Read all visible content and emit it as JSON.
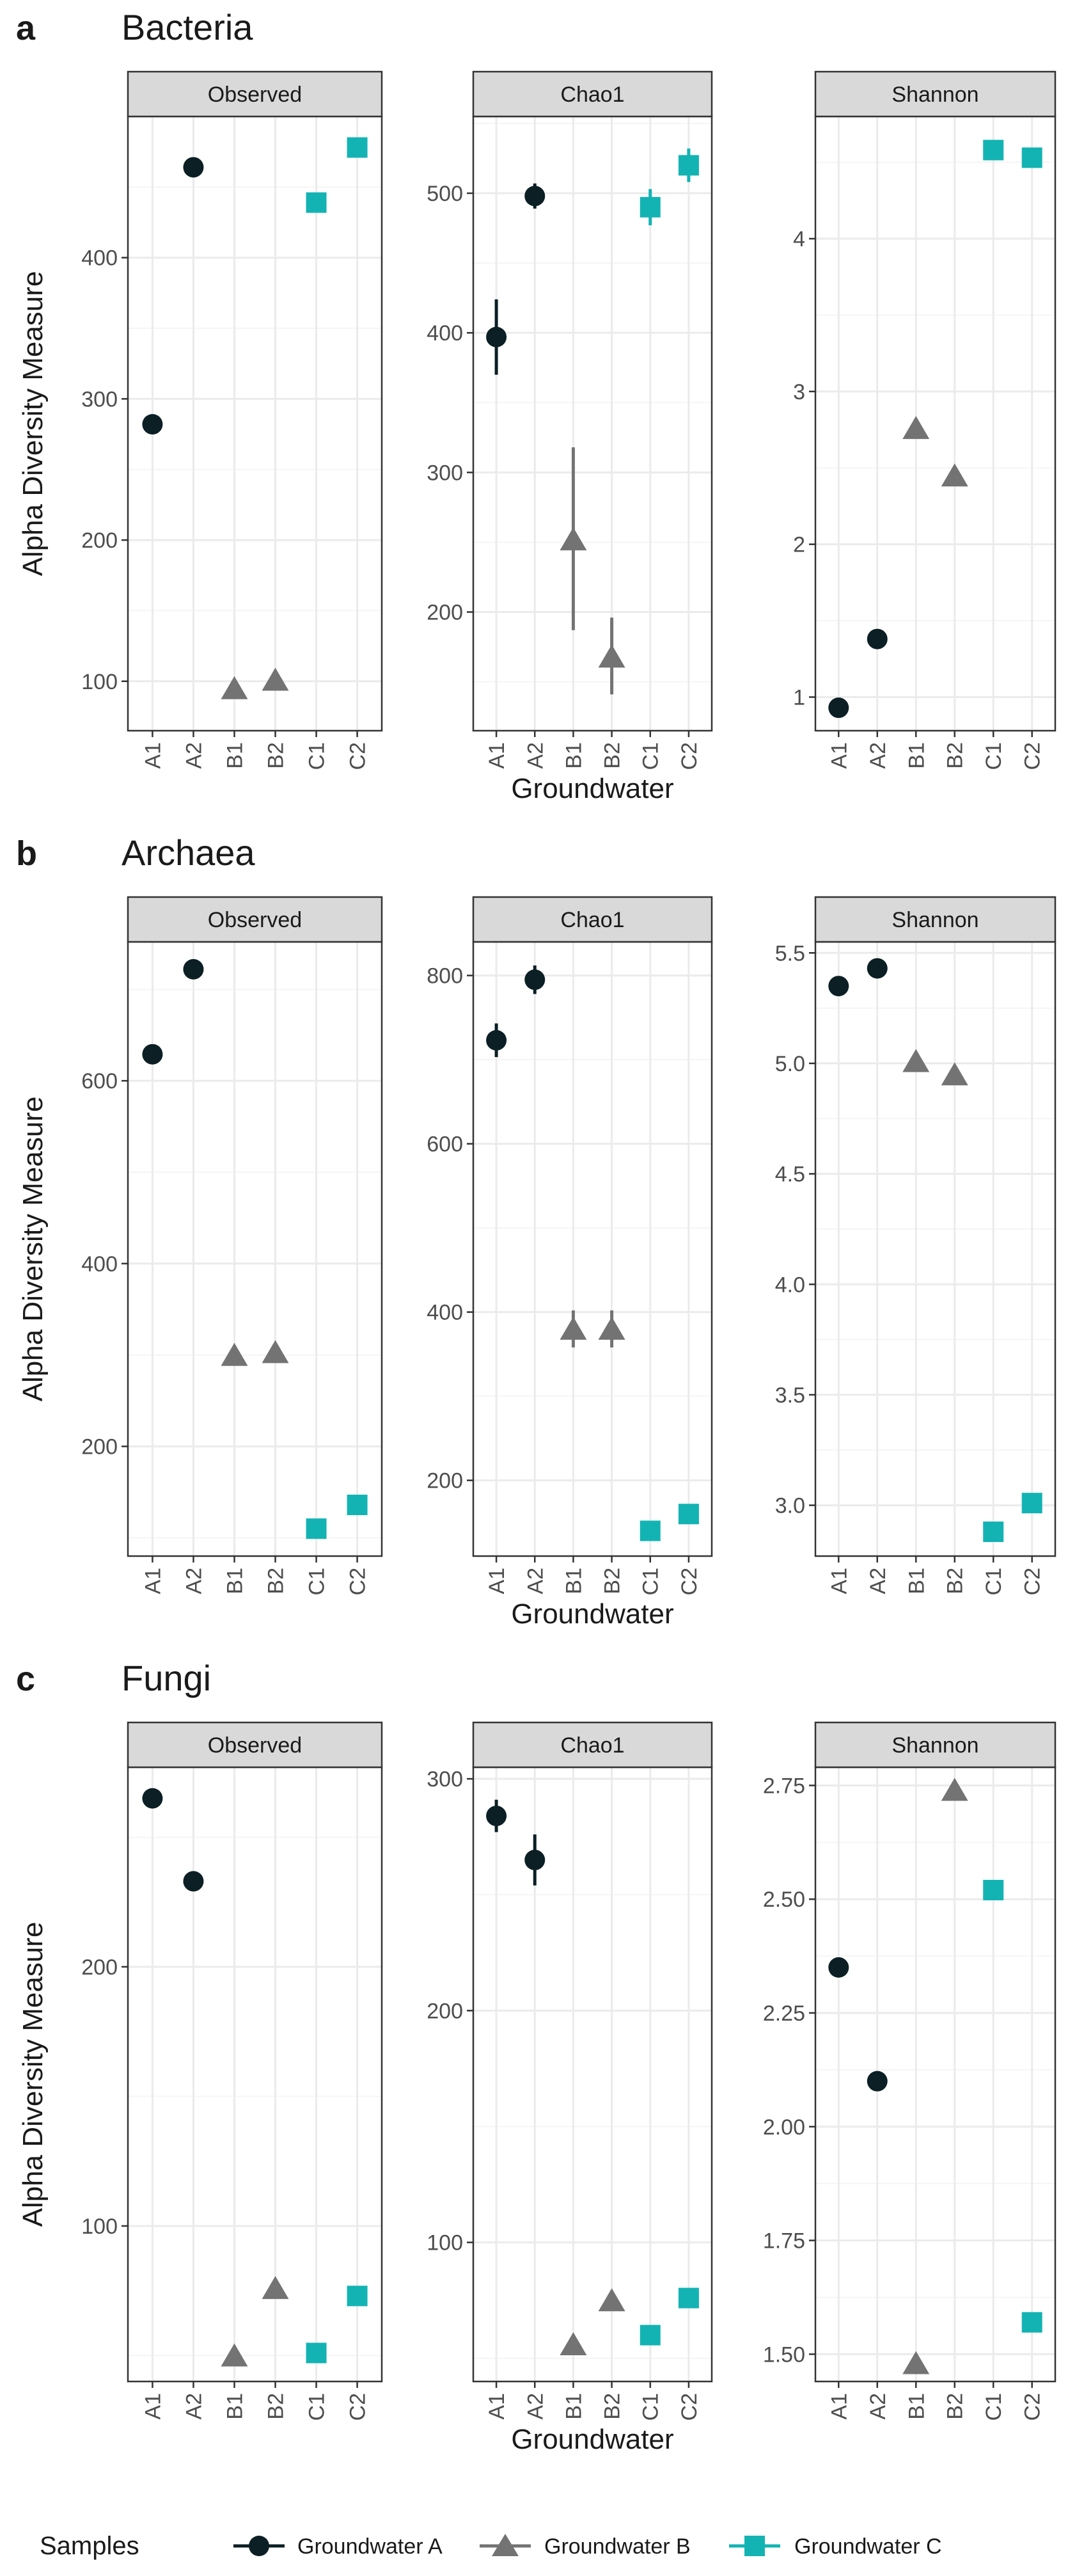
{
  "figure": {
    "xlabel": "Groundwater",
    "ylabel": "Alpha Diversity Measure"
  },
  "legend": {
    "title": "Samples",
    "entries": [
      {
        "label": "Groundwater A",
        "shape": "circle",
        "color": "#0b1f24"
      },
      {
        "label": "Groundwater B",
        "shape": "triangle",
        "color": "#737373"
      },
      {
        "label": "Groundwater C",
        "shape": "square",
        "color": "#14b3b3"
      }
    ]
  },
  "colors": {
    "strip_bg": "#d9d9d9",
    "grid_major": "#ebebeb",
    "grid_minor": "#f5f5f5",
    "border": "#333333",
    "text": "#1a1a1a",
    "tick_text": "#4d4d4d"
  },
  "chart_data": [
    {
      "letter": "a",
      "title": "Bacteria",
      "type": "scatter",
      "categories": [
        "A1",
        "A2",
        "B1",
        "B2",
        "C1",
        "C2"
      ],
      "groups": [
        "A",
        "A",
        "B",
        "B",
        "C",
        "C"
      ],
      "panels": [
        {
          "strip": "Observed",
          "ylim": [
            65,
            500
          ],
          "yticks": [
            100,
            200,
            300,
            400
          ],
          "values": [
            282,
            464,
            95,
            101,
            439,
            478
          ]
        },
        {
          "strip": "Chao1",
          "ylim": [
            115,
            555
          ],
          "yticks": [
            200,
            300,
            400,
            500
          ],
          "values": [
            397,
            498,
            252,
            168,
            490,
            520
          ],
          "errors": [
            [
              370,
              424
            ],
            [
              489,
              507
            ],
            [
              187,
              318
            ],
            [
              141,
              196
            ],
            [
              477,
              503
            ],
            [
              508,
              532
            ]
          ]
        },
        {
          "strip": "Shannon",
          "ylim": [
            0.78,
            4.8
          ],
          "yticks": [
            1,
            2,
            3,
            4
          ],
          "tick_labels": [
            "1",
            "2",
            "3",
            "4"
          ],
          "values": [
            0.93,
            1.38,
            2.76,
            2.45,
            4.58,
            4.53
          ]
        }
      ]
    },
    {
      "letter": "b",
      "title": "Archaea",
      "type": "scatter",
      "categories": [
        "A1",
        "A2",
        "B1",
        "B2",
        "C1",
        "C2"
      ],
      "groups": [
        "A",
        "A",
        "B",
        "B",
        "C",
        "C"
      ],
      "panels": [
        {
          "strip": "Observed",
          "ylim": [
            80,
            752
          ],
          "yticks": [
            200,
            400,
            600
          ],
          "values": [
            629,
            722,
            300,
            303,
            110,
            136
          ]
        },
        {
          "strip": "Chao1",
          "ylim": [
            110,
            840
          ],
          "yticks": [
            200,
            400,
            600,
            800
          ],
          "values": [
            723,
            795,
            380,
            380,
            140,
            160
          ],
          "errors": [
            [
              703,
              743
            ],
            [
              778,
              812
            ],
            [
              358,
              402
            ],
            [
              358,
              402
            ],
            [
              132,
              148
            ],
            [
              153,
              167
            ]
          ]
        },
        {
          "strip": "Shannon",
          "ylim": [
            2.77,
            5.55
          ],
          "yticks": [
            3.0,
            3.5,
            4.0,
            4.5,
            5.0,
            5.5
          ],
          "tick_labels": [
            "3.0",
            "3.5",
            "4.0",
            "4.5",
            "5.0",
            "5.5"
          ],
          "values": [
            5.35,
            5.43,
            5.01,
            4.95,
            2.88,
            3.01
          ]
        }
      ]
    },
    {
      "letter": "c",
      "title": "Fungi",
      "type": "scatter",
      "categories": [
        "A1",
        "A2",
        "B1",
        "B2",
        "C1",
        "C2"
      ],
      "groups": [
        "A",
        "A",
        "B",
        "B",
        "C",
        "C"
      ],
      "panels": [
        {
          "strip": "Observed",
          "ylim": [
            40,
            277
          ],
          "yticks": [
            100,
            200
          ],
          "values": [
            265,
            233,
            50,
            76,
            51,
            73
          ]
        },
        {
          "strip": "Chao1",
          "ylim": [
            40,
            305
          ],
          "yticks": [
            100,
            200,
            300
          ],
          "values": [
            284,
            265,
            56,
            75,
            60,
            76
          ],
          "errors": [
            [
              277,
              291
            ],
            [
              254,
              276
            ],
            [
              52,
              60
            ],
            [
              72,
              78
            ],
            [
              57,
              63
            ],
            [
              73,
              79
            ]
          ]
        },
        {
          "strip": "Shannon",
          "ylim": [
            1.44,
            2.79
          ],
          "yticks": [
            1.5,
            1.75,
            2.0,
            2.25,
            2.5,
            2.75
          ],
          "tick_labels": [
            "1.50",
            "1.75",
            "2.00",
            "2.25",
            "2.50",
            "2.75"
          ],
          "values": [
            2.35,
            2.1,
            1.48,
            2.74,
            2.52,
            1.57
          ]
        }
      ]
    }
  ]
}
